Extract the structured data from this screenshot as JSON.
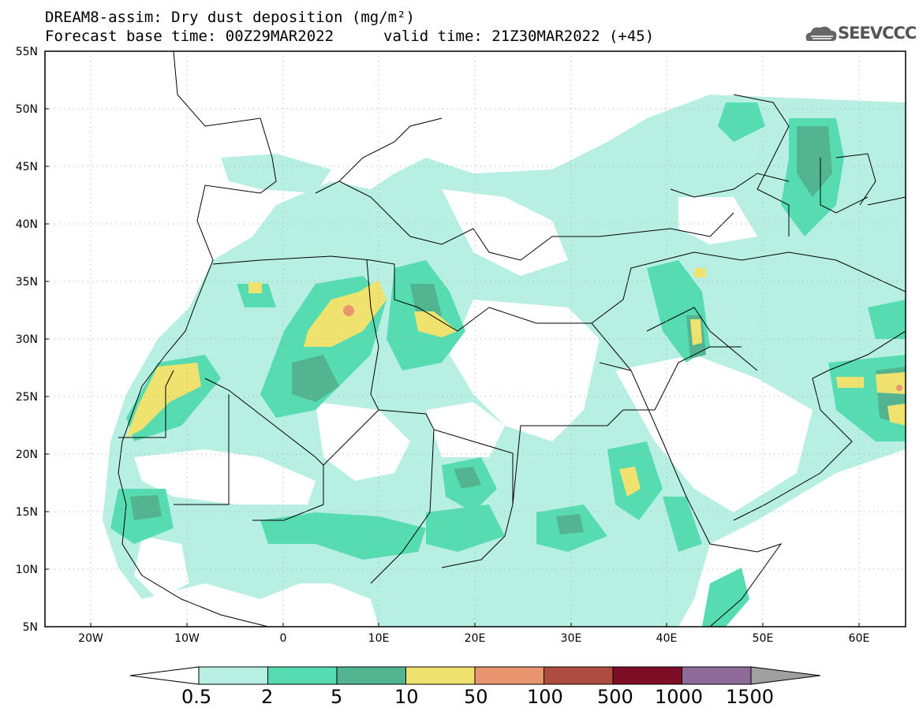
{
  "header": {
    "line1": "DREAM8-assim: Dry dust deposition (mg/m²)",
    "line2": "Forecast base time: 00Z29MAR2022",
    "line3": "valid time: 21Z30MAR2022 (+45)"
  },
  "logo": {
    "text": "SEEVCCC",
    "icon": "cloud-icon"
  },
  "map": {
    "lat_labels": [
      "55N",
      "50N",
      "45N",
      "40N",
      "35N",
      "30N",
      "25N",
      "20N",
      "15N",
      "10N",
      "5N"
    ],
    "lon_labels": [
      "20W",
      "10W",
      "0",
      "10E",
      "20E",
      "30E",
      "40E",
      "50E",
      "60E"
    ]
  },
  "colorbar": {
    "labels": [
      "0.5",
      "2",
      "5",
      "10",
      "50",
      "100",
      "500",
      "1000",
      "1500"
    ],
    "colors": [
      "#ffffff",
      "#b8efe3",
      "#56dcb0",
      "#53b491",
      "#f0e26e",
      "#e89570",
      "#ac4d40",
      "#7d0e26",
      "#8f6b9a",
      "#a0a0a0"
    ]
  }
}
